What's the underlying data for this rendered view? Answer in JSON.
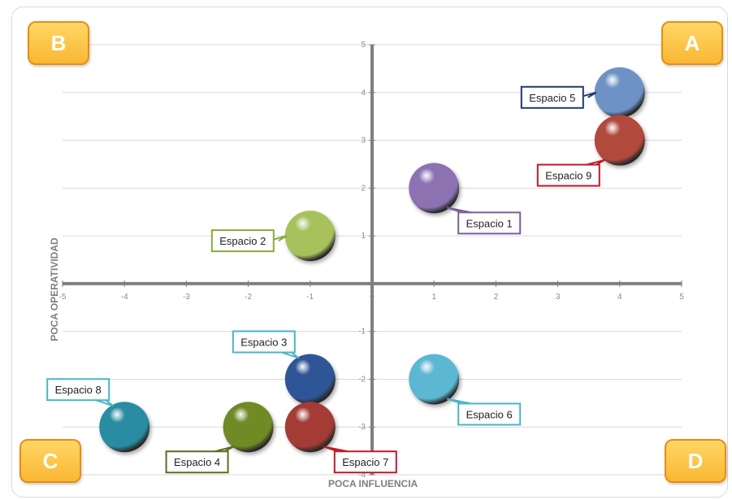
{
  "quadrants": {
    "b": "B",
    "a": "A",
    "c": "C",
    "d": "D"
  },
  "chart_data": {
    "type": "scatter",
    "xlabel": "POCA INFLUENCIA",
    "ylabel": "POCA OPERATIVIDAD",
    "xlim": [
      -5,
      5
    ],
    "ylim": [
      -4,
      5
    ],
    "x_ticks": [
      -5,
      -4,
      -3,
      -2,
      -1,
      0,
      1,
      2,
      3,
      4,
      5
    ],
    "y_ticks": [
      5,
      4,
      3,
      2,
      1,
      0,
      -1,
      -2,
      -3,
      -4
    ],
    "grid": true,
    "points": [
      {
        "label": "Espacio 1",
        "x": 1,
        "y": 2,
        "color": "#8d72b2",
        "border": "#7a5fa3",
        "callout": "below-right"
      },
      {
        "label": "Espacio 2",
        "x": -1,
        "y": 1,
        "color": "#a7c15b",
        "border": "#8aaa3c",
        "callout": "left"
      },
      {
        "label": "Espacio 3",
        "x": -1,
        "y": -2,
        "color": "#2f5596",
        "border": "#4ab4c8",
        "callout": "above-left"
      },
      {
        "label": "Espacio 4",
        "x": -2,
        "y": -3,
        "color": "#6f8a25",
        "border": "#5a6e1f",
        "callout": "below-left"
      },
      {
        "label": "Espacio 5",
        "x": 4,
        "y": 4,
        "color": "#6e92c6",
        "border": "#1f3a6e",
        "callout": "left"
      },
      {
        "label": "Espacio 6",
        "x": 1,
        "y": -2,
        "color": "#5bb8d2",
        "border": "#4ab4c8",
        "callout": "below-right"
      },
      {
        "label": "Espacio 7",
        "x": -1,
        "y": -3,
        "color": "#a43b34",
        "border": "#c0182a",
        "callout": "below-right"
      },
      {
        "label": "Espacio 8",
        "x": -4,
        "y": -3,
        "color": "#2a8ca3",
        "border": "#4ab4c8",
        "callout": "above-left"
      },
      {
        "label": "Espacio 9",
        "x": 4,
        "y": 3,
        "color": "#b24a3c",
        "border": "#c0182a",
        "callout": "below-left"
      }
    ]
  }
}
